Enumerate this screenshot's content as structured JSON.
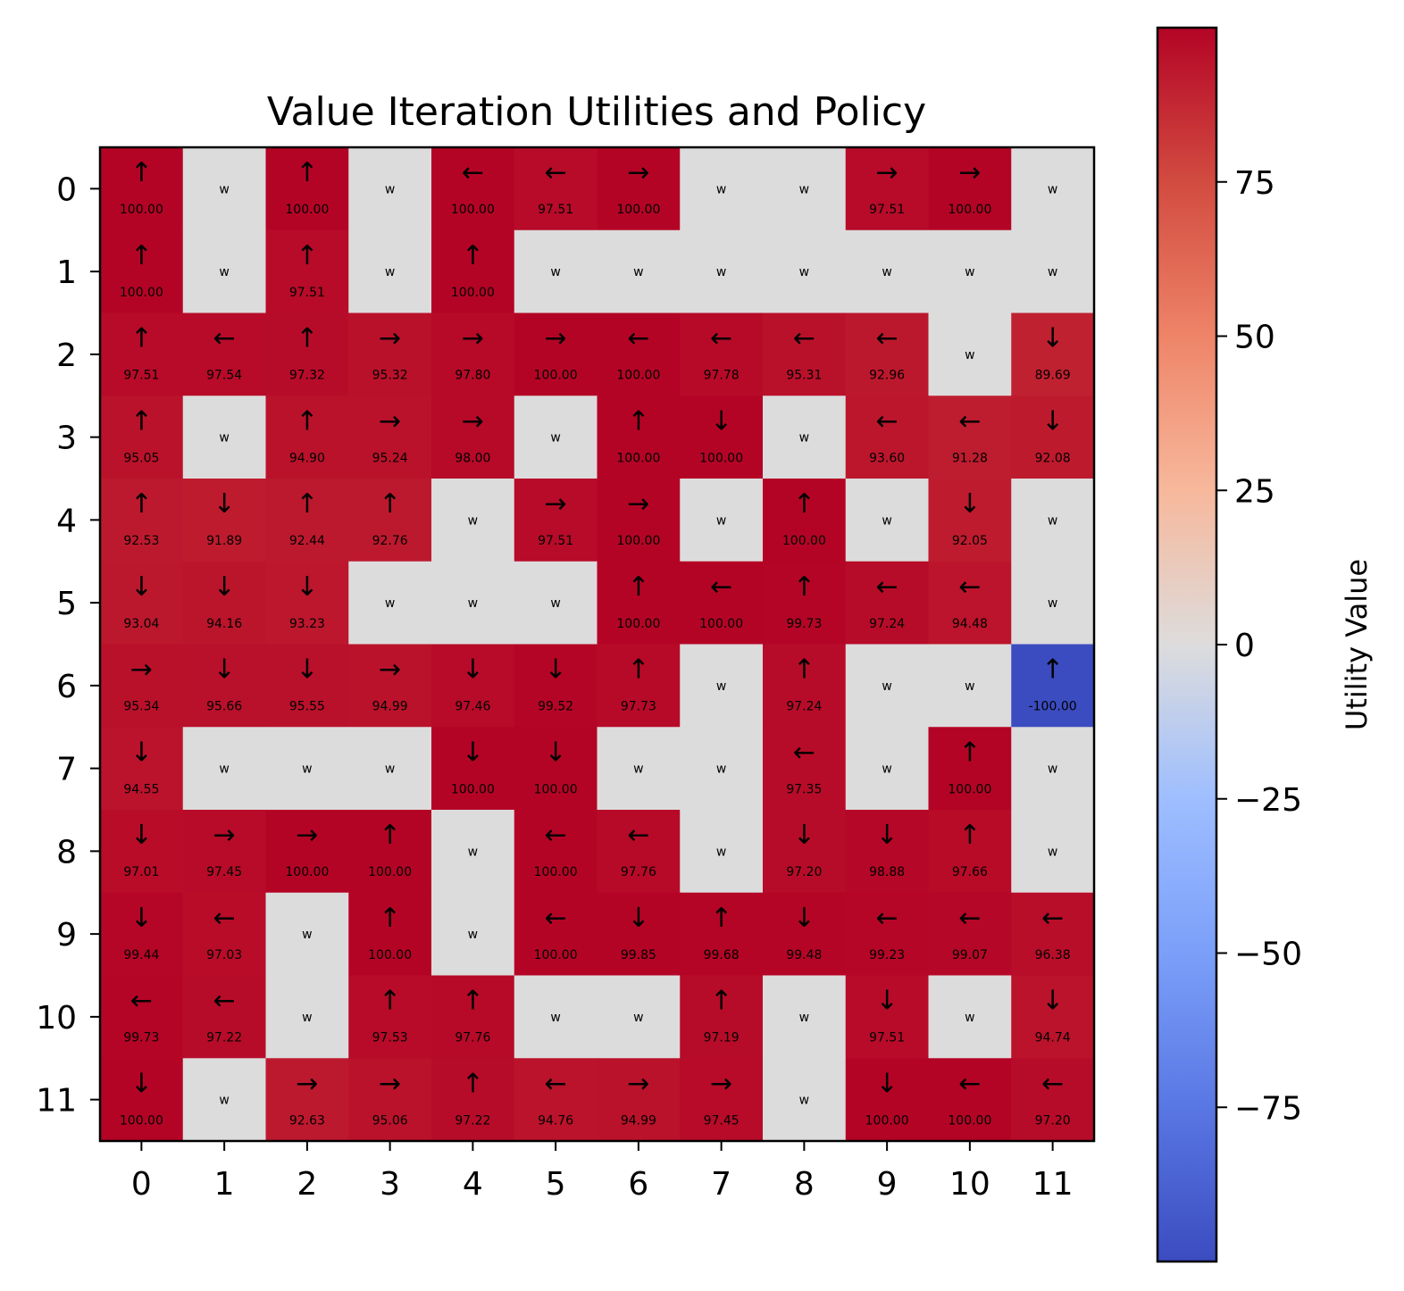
{
  "chart_data": {
    "type": "heatmap",
    "title": "Value Iteration Utilities and Policy",
    "xlabel": "",
    "ylabel": "",
    "x_ticks": [
      "0",
      "1",
      "2",
      "3",
      "4",
      "5",
      "6",
      "7",
      "8",
      "9",
      "10",
      "11"
    ],
    "y_ticks": [
      "0",
      "1",
      "2",
      "3",
      "4",
      "5",
      "6",
      "7",
      "8",
      "9",
      "10",
      "11"
    ],
    "colormap": "coolwarm",
    "value_range": [
      -100,
      100
    ],
    "wall_label": "w",
    "wall_color": "#dddcdc",
    "colorbar": {
      "label": "Utility Value",
      "ticks": [
        {
          "value": 75,
          "label": "75"
        },
        {
          "value": 50,
          "label": "50"
        },
        {
          "value": 25,
          "label": "25"
        },
        {
          "value": 0,
          "label": "0"
        },
        {
          "value": -25,
          "label": "−25"
        },
        {
          "value": -50,
          "label": "−50"
        },
        {
          "value": -75,
          "label": "−75"
        }
      ]
    },
    "grid": [
      [
        {
          "p": "↑",
          "v": "100.00"
        },
        {
          "w": true
        },
        {
          "p": "↑",
          "v": "100.00"
        },
        {
          "w": true
        },
        {
          "p": "←",
          "v": "100.00"
        },
        {
          "p": "←",
          "v": "97.51"
        },
        {
          "p": "→",
          "v": "100.00"
        },
        {
          "w": true
        },
        {
          "w": true
        },
        {
          "p": "→",
          "v": "97.51"
        },
        {
          "p": "→",
          "v": "100.00"
        },
        {
          "w": true
        }
      ],
      [
        {
          "p": "↑",
          "v": "100.00"
        },
        {
          "w": true
        },
        {
          "p": "↑",
          "v": "97.51"
        },
        {
          "w": true
        },
        {
          "p": "↑",
          "v": "100.00"
        },
        {
          "w": true
        },
        {
          "w": true
        },
        {
          "w": true
        },
        {
          "w": true
        },
        {
          "w": true
        },
        {
          "w": true
        },
        {
          "w": true
        }
      ],
      [
        {
          "p": "↑",
          "v": "97.51"
        },
        {
          "p": "←",
          "v": "97.54"
        },
        {
          "p": "↑",
          "v": "97.32"
        },
        {
          "p": "→",
          "v": "95.32"
        },
        {
          "p": "→",
          "v": "97.80"
        },
        {
          "p": "→",
          "v": "100.00"
        },
        {
          "p": "←",
          "v": "100.00"
        },
        {
          "p": "←",
          "v": "97.78"
        },
        {
          "p": "←",
          "v": "95.31"
        },
        {
          "p": "←",
          "v": "92.96"
        },
        {
          "w": true
        },
        {
          "p": "↓",
          "v": "89.69"
        }
      ],
      [
        {
          "p": "↑",
          "v": "95.05"
        },
        {
          "w": true
        },
        {
          "p": "↑",
          "v": "94.90"
        },
        {
          "p": "→",
          "v": "95.24"
        },
        {
          "p": "→",
          "v": "98.00"
        },
        {
          "w": true
        },
        {
          "p": "↑",
          "v": "100.00"
        },
        {
          "p": "↓",
          "v": "100.00"
        },
        {
          "w": true
        },
        {
          "p": "←",
          "v": "93.60"
        },
        {
          "p": "←",
          "v": "91.28"
        },
        {
          "p": "↓",
          "v": "92.08"
        }
      ],
      [
        {
          "p": "↑",
          "v": "92.53"
        },
        {
          "p": "↓",
          "v": "91.89"
        },
        {
          "p": "↑",
          "v": "92.44"
        },
        {
          "p": "↑",
          "v": "92.76"
        },
        {
          "w": true
        },
        {
          "p": "→",
          "v": "97.51"
        },
        {
          "p": "→",
          "v": "100.00"
        },
        {
          "w": true
        },
        {
          "p": "↑",
          "v": "100.00"
        },
        {
          "w": true
        },
        {
          "p": "↓",
          "v": "92.05"
        },
        {
          "w": true
        }
      ],
      [
        {
          "p": "↓",
          "v": "93.04"
        },
        {
          "p": "↓",
          "v": "94.16"
        },
        {
          "p": "↓",
          "v": "93.23"
        },
        {
          "w": true
        },
        {
          "w": true
        },
        {
          "w": true
        },
        {
          "p": "↑",
          "v": "100.00"
        },
        {
          "p": "←",
          "v": "100.00"
        },
        {
          "p": "↑",
          "v": "99.73"
        },
        {
          "p": "←",
          "v": "97.24"
        },
        {
          "p": "←",
          "v": "94.48"
        },
        {
          "w": true
        }
      ],
      [
        {
          "p": "→",
          "v": "95.34"
        },
        {
          "p": "↓",
          "v": "95.66"
        },
        {
          "p": "↓",
          "v": "95.55"
        },
        {
          "p": "→",
          "v": "94.99"
        },
        {
          "p": "↓",
          "v": "97.46"
        },
        {
          "p": "↓",
          "v": "99.52"
        },
        {
          "p": "↑",
          "v": "97.73"
        },
        {
          "w": true
        },
        {
          "p": "↑",
          "v": "97.24"
        },
        {
          "w": true
        },
        {
          "w": true
        },
        {
          "p": "↑",
          "v": "-100.00"
        }
      ],
      [
        {
          "p": "↓",
          "v": "94.55"
        },
        {
          "w": true
        },
        {
          "w": true
        },
        {
          "w": true
        },
        {
          "p": "↓",
          "v": "100.00"
        },
        {
          "p": "↓",
          "v": "100.00"
        },
        {
          "w": true
        },
        {
          "w": true
        },
        {
          "p": "←",
          "v": "97.35"
        },
        {
          "w": true
        },
        {
          "p": "↑",
          "v": "100.00"
        },
        {
          "w": true
        }
      ],
      [
        {
          "p": "↓",
          "v": "97.01"
        },
        {
          "p": "→",
          "v": "97.45"
        },
        {
          "p": "→",
          "v": "100.00"
        },
        {
          "p": "↑",
          "v": "100.00"
        },
        {
          "w": true
        },
        {
          "p": "←",
          "v": "100.00"
        },
        {
          "p": "←",
          "v": "97.76"
        },
        {
          "w": true
        },
        {
          "p": "↓",
          "v": "97.20"
        },
        {
          "p": "↓",
          "v": "98.88"
        },
        {
          "p": "↑",
          "v": "97.66"
        },
        {
          "w": true
        }
      ],
      [
        {
          "p": "↓",
          "v": "99.44"
        },
        {
          "p": "←",
          "v": "97.03"
        },
        {
          "w": true
        },
        {
          "p": "↑",
          "v": "100.00"
        },
        {
          "w": true
        },
        {
          "p": "←",
          "v": "100.00"
        },
        {
          "p": "↓",
          "v": "99.85"
        },
        {
          "p": "↑",
          "v": "99.68"
        },
        {
          "p": "↓",
          "v": "99.48"
        },
        {
          "p": "←",
          "v": "99.23"
        },
        {
          "p": "←",
          "v": "99.07"
        },
        {
          "p": "←",
          "v": "96.38"
        }
      ],
      [
        {
          "p": "←",
          "v": "99.73"
        },
        {
          "p": "←",
          "v": "97.22"
        },
        {
          "w": true
        },
        {
          "p": "↑",
          "v": "97.53"
        },
        {
          "p": "↑",
          "v": "97.76"
        },
        {
          "w": true
        },
        {
          "w": true
        },
        {
          "p": "↑",
          "v": "97.19"
        },
        {
          "w": true
        },
        {
          "p": "↓",
          "v": "97.51"
        },
        {
          "w": true
        },
        {
          "p": "↓",
          "v": "94.74"
        }
      ],
      [
        {
          "p": "↓",
          "v": "100.00"
        },
        {
          "w": true
        },
        {
          "p": "→",
          "v": "92.63"
        },
        {
          "p": "→",
          "v": "95.06"
        },
        {
          "p": "↑",
          "v": "97.22"
        },
        {
          "p": "←",
          "v": "94.76"
        },
        {
          "p": "→",
          "v": "94.99"
        },
        {
          "p": "→",
          "v": "97.45"
        },
        {
          "w": true
        },
        {
          "p": "↓",
          "v": "100.00"
        },
        {
          "p": "←",
          "v": "100.00"
        },
        {
          "p": "←",
          "v": "97.20"
        }
      ]
    ]
  }
}
